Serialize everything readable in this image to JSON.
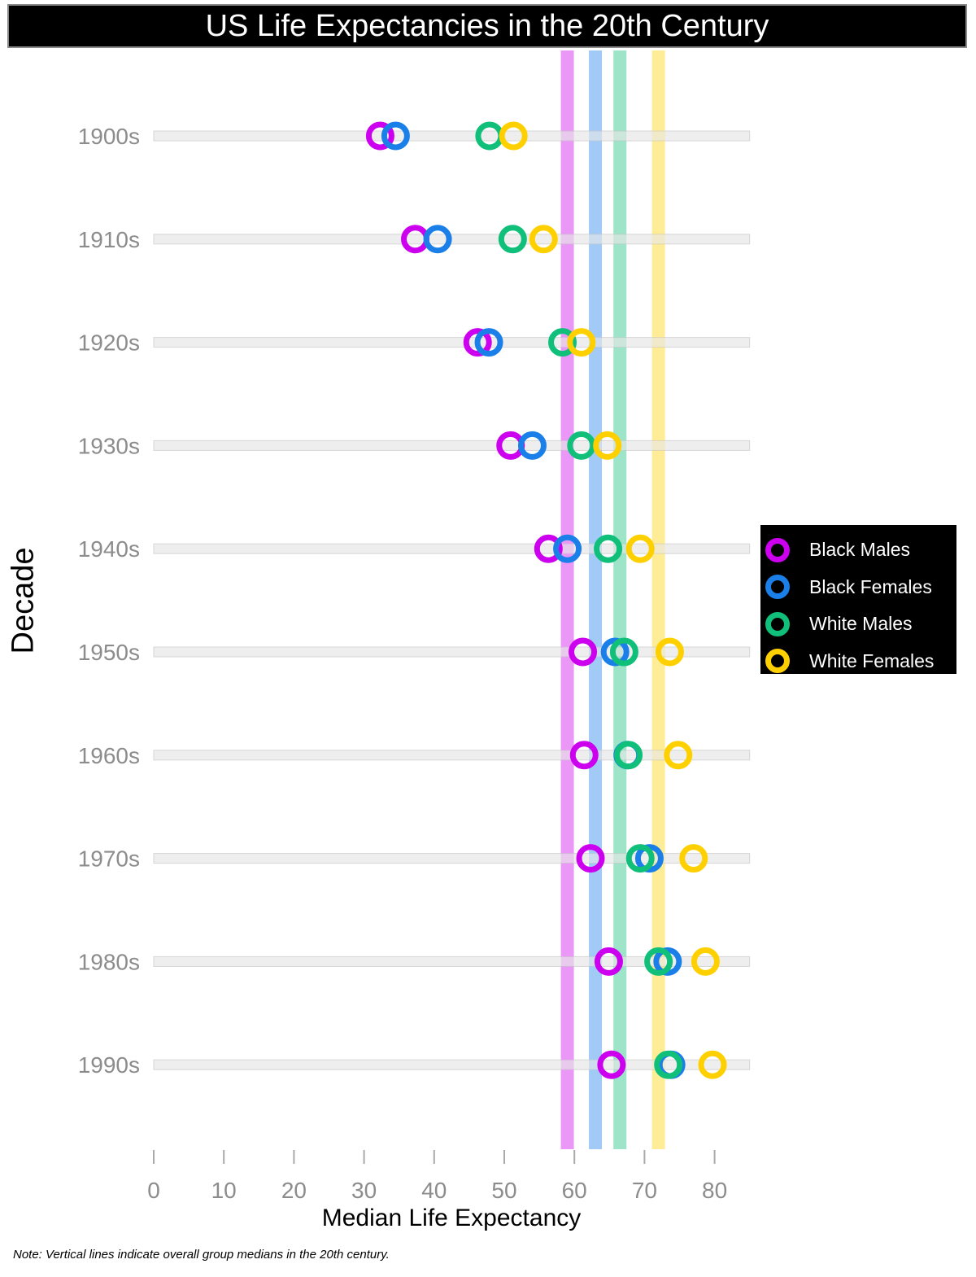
{
  "title": "US Life Expectancies in the 20th Century",
  "note": "Note: Vertical lines indicate overall group medians in the 20th century.",
  "chart_data": {
    "type": "dot",
    "title": "US Life Expectancies in the 20th Century",
    "xlabel": "Median Life Expectancy",
    "ylabel": "Decade",
    "xlim": [
      0,
      85
    ],
    "xticks": [
      0,
      10,
      20,
      30,
      40,
      50,
      60,
      70,
      80
    ],
    "categories": [
      "1900s",
      "1910s",
      "1920s",
      "1930s",
      "1940s",
      "1950s",
      "1960s",
      "1970s",
      "1980s",
      "1990s"
    ],
    "series": [
      {
        "name": "Black Males",
        "color": "#cc00ee",
        "median": 59,
        "values": [
          32.3,
          37.3,
          46.2,
          50.9,
          56.3,
          61.2,
          61.4,
          62.3,
          64.9,
          65.3
        ]
      },
      {
        "name": "Black Females",
        "color": "#1a7fe8",
        "median": 63,
        "values": [
          34.5,
          40.5,
          47.8,
          54.0,
          59.0,
          65.8,
          67.6,
          70.7,
          73.3,
          73.8
        ]
      },
      {
        "name": "White Males",
        "color": "#0fbf7a",
        "median": 66.5,
        "values": [
          47.9,
          51.2,
          58.3,
          61.0,
          64.8,
          67.1,
          67.7,
          69.4,
          72.0,
          73.4
        ]
      },
      {
        "name": "White Females",
        "color": "#ffd000",
        "median": 72,
        "values": [
          51.3,
          55.6,
          61.0,
          64.7,
          69.4,
          73.6,
          74.8,
          77.0,
          78.7,
          79.7
        ]
      }
    ],
    "legend_position": "right",
    "grid": false
  }
}
